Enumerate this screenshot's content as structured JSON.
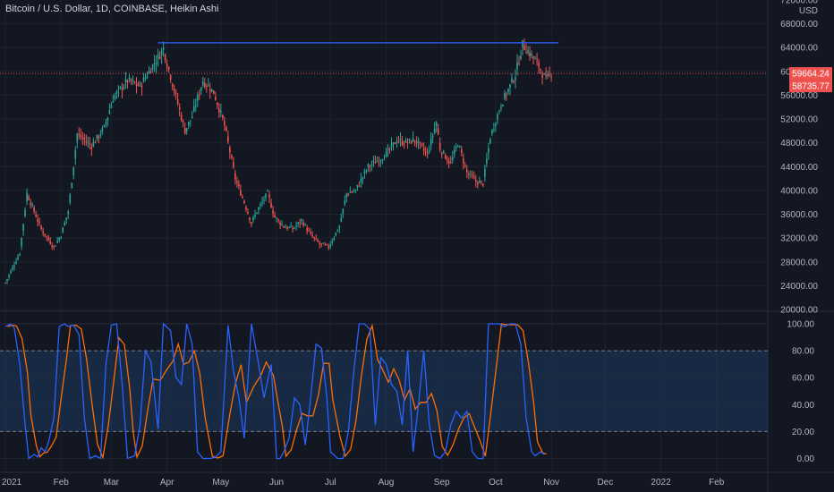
{
  "header": {
    "title": "Bitcoin / U.S. Dollar, 1D, COINBASE, Heikin Ashi",
    "currency": "USD"
  },
  "colors": {
    "background": "#131722",
    "grid": "#1e222d",
    "up": "#26a69a",
    "down": "#ef5350",
    "resistance": "#2962ff",
    "stoch_k": "#2962ff",
    "stoch_d": "#ff6d00",
    "stoch_band": "#1e3a5f",
    "price_line": "#ef5350"
  },
  "chart_data": [
    {
      "type": "candlestick",
      "title": "Bitcoin / U.S. Dollar, 1D, COINBASE, Heikin Ashi",
      "ylabel": "USD",
      "ylim": [
        20000,
        72000
      ],
      "ytick_labels": [
        "20000.00",
        "24000.00",
        "28000.00",
        "32000.00",
        "36000.00",
        "40000.00",
        "44000.00",
        "48000.00",
        "52000.00",
        "56000.00",
        "60000.00",
        "64000.00",
        "68000.00",
        "72000.00"
      ],
      "yticks": [
        20000,
        24000,
        28000,
        32000,
        36000,
        40000,
        44000,
        48000,
        52000,
        56000,
        60000,
        64000,
        68000,
        72000
      ],
      "x_labels": [
        "2021",
        "Feb",
        "Mar",
        "Apr",
        "May",
        "Jun",
        "Jul",
        "Aug",
        "Sep",
        "Oct",
        "Nov",
        "Dec",
        "2022",
        "Feb"
      ],
      "x_label_days": [
        0,
        31,
        59,
        90,
        120,
        151,
        181,
        212,
        243,
        273,
        304,
        334,
        365,
        396
      ],
      "series": [
        {
          "x_days": [
            0,
            8,
            12,
            20,
            27,
            31,
            35,
            40,
            48,
            55,
            60,
            68,
            75,
            80,
            88,
            93,
            100,
            104,
            110,
            116,
            122,
            128,
            133,
            137,
            140,
            146,
            150,
            155,
            160,
            165,
            170,
            175,
            180,
            186,
            190,
            195,
            202,
            207,
            212,
            218,
            223,
            228,
            235,
            240,
            242,
            248,
            252,
            257,
            262,
            266,
            270,
            276,
            281,
            284,
            288,
            292,
            296,
            301,
            304
          ],
          "close": [
            24500,
            29500,
            39500,
            33500,
            30500,
            32500,
            36500,
            49500,
            47500,
            50500,
            55500,
            58500,
            57500,
            60000,
            63800,
            58000,
            50000,
            52500,
            58500,
            56500,
            51000,
            42000,
            38000,
            34500,
            36500,
            39500,
            35500,
            34000,
            33500,
            35000,
            32500,
            31000,
            30500,
            34000,
            39500,
            40000,
            44000,
            45000,
            46000,
            48500,
            48000,
            48500,
            46000,
            51500,
            47000,
            44500,
            48000,
            43000,
            41500,
            41200,
            49000,
            54500,
            57500,
            59500,
            64500,
            63000,
            61500,
            58500,
            59664
          ]
        }
      ],
      "annotations": {
        "resistance_level": 64800,
        "last_price": 59664.24,
        "second_tag": 58735.77
      }
    },
    {
      "type": "line",
      "title": "",
      "ylim": [
        -5,
        108
      ],
      "ytick_labels": [
        "100.00",
        "80.00",
        "60.00",
        "40.00",
        "20.00",
        "0.00"
      ],
      "yticks": [
        100,
        80,
        60,
        40,
        20,
        0
      ],
      "bands": [
        20,
        80
      ],
      "x_labels": [
        "2021",
        "Feb",
        "Mar",
        "Apr",
        "May",
        "Jun",
        "Jul",
        "Aug",
        "Sep",
        "Oct",
        "Nov",
        "Dec",
        "2022",
        "Feb"
      ],
      "series": [
        {
          "x_days": [
            0,
            3,
            5,
            8,
            11,
            13,
            16,
            18,
            20,
            22,
            24,
            27,
            30,
            33,
            35,
            38,
            41,
            44,
            47,
            50,
            53,
            56,
            59,
            62,
            65,
            68,
            70,
            72,
            75,
            78,
            81,
            85,
            88,
            92,
            95,
            98,
            101,
            104,
            107,
            110,
            114,
            117,
            120,
            124,
            127,
            130,
            133,
            137,
            141,
            144,
            148,
            151,
            153,
            155,
            158,
            161,
            164,
            167,
            170,
            173,
            176,
            179,
            181,
            185,
            188,
            191,
            194,
            197,
            200,
            203,
            206,
            209,
            212,
            215,
            218,
            221,
            224,
            227,
            230,
            233,
            236,
            239,
            242,
            245,
            248,
            251,
            254,
            257,
            260,
            263,
            266,
            269,
            272,
            275,
            278,
            281,
            284,
            287,
            290,
            293,
            295,
            298,
            300
          ],
          "k": [
            98,
            100,
            97,
            70,
            25,
            0,
            3,
            1,
            8,
            5,
            12,
            30,
            98,
            100,
            98,
            99,
            92,
            30,
            0,
            2,
            0,
            70,
            99,
            100,
            55,
            0,
            1,
            2,
            25,
            80,
            72,
            22,
            100,
            95,
            60,
            55,
            100,
            85,
            5,
            0,
            0,
            1,
            5,
            99,
            65,
            45,
            15,
            100,
            70,
            45,
            70,
            0,
            0,
            5,
            15,
            45,
            40,
            10,
            45,
            85,
            82,
            45,
            5,
            0,
            0,
            20,
            65,
            100,
            100,
            96,
            25,
            75,
            70,
            55,
            50,
            25,
            80,
            5,
            40,
            80,
            25,
            2,
            0,
            5,
            25,
            35,
            30,
            35,
            5,
            0,
            0,
            100,
            100,
            100,
            98,
            100,
            100,
            85,
            30,
            5,
            2,
            5,
            3
          ]
        }
      ]
    }
  ]
}
